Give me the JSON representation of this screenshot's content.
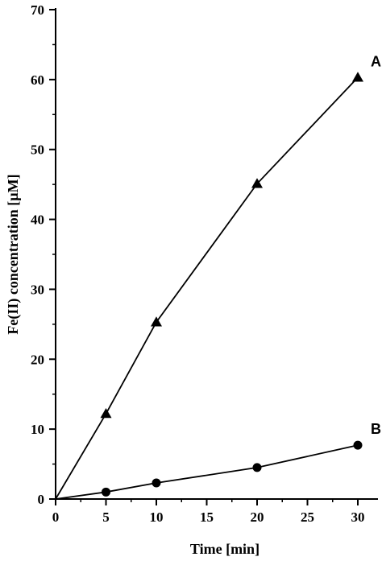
{
  "chart_data": {
    "type": "line",
    "xlabel": "Time [min]",
    "ylabel": "Fe(II) concentration [µM]",
    "xlim": [
      0,
      32
    ],
    "ylim": [
      0,
      70
    ],
    "xticks": [
      0,
      5,
      10,
      15,
      20,
      25,
      30
    ],
    "yticks": [
      0,
      10,
      20,
      30,
      40,
      50,
      60,
      70
    ],
    "grid": false,
    "series": [
      {
        "name": "A",
        "marker": "triangle",
        "color": "#000000",
        "x": [
          0,
          5,
          10,
          20,
          30
        ],
        "y": [
          0,
          12.2,
          25.3,
          45.1,
          60.3
        ]
      },
      {
        "name": "B",
        "marker": "circle",
        "color": "#000000",
        "x": [
          0,
          5,
          10,
          20,
          30
        ],
        "y": [
          0,
          1.0,
          2.3,
          4.5,
          7.7
        ]
      }
    ]
  }
}
